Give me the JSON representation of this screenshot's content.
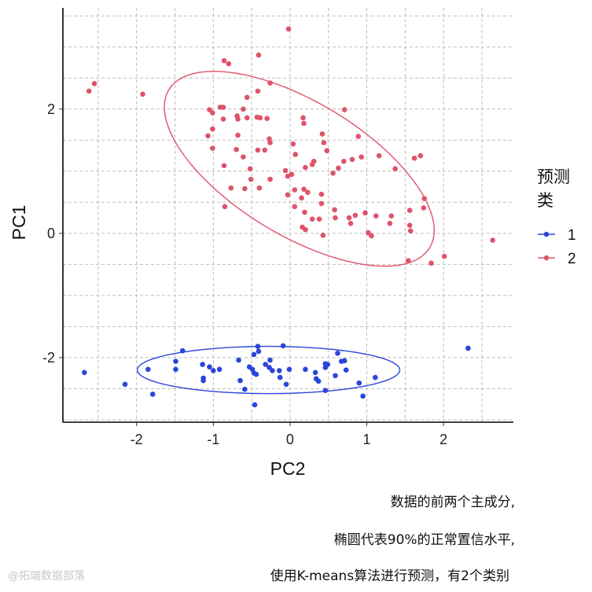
{
  "chart_data": {
    "type": "scatter",
    "xlabel": "PC2",
    "ylabel": "PC1",
    "xlim": [
      -2.96,
      2.91
    ],
    "ylim": [
      -3.04,
      3.63
    ],
    "xticks": [
      -2,
      -1,
      0,
      1,
      2
    ],
    "yticks": [
      -2,
      0,
      2
    ],
    "grid": true,
    "grid_style": "dashed",
    "legend": {
      "title": "预测\n类",
      "title_lines": [
        "预测",
        "类"
      ],
      "placement": "right",
      "entries": [
        "1",
        "2"
      ]
    },
    "colors": {
      "1": "#2a45d8",
      "2": "#df536b"
    },
    "series": [
      {
        "name": "1",
        "points": [
          [
            -2.68,
            -2.24
          ],
          [
            -2.15,
            -2.43
          ],
          [
            -1.79,
            -2.59
          ],
          [
            -1.85,
            -2.19
          ],
          [
            -1.4,
            -1.89
          ],
          [
            -1.49,
            -2.06
          ],
          [
            -1.49,
            -2.19
          ],
          [
            -1.14,
            -2.11
          ],
          [
            -1.13,
            -2.33
          ],
          [
            -1.13,
            -2.37
          ],
          [
            -1.05,
            -2.15
          ],
          [
            -1.0,
            -2.21
          ],
          [
            -0.92,
            -2.19
          ],
          [
            -0.67,
            -2.04
          ],
          [
            -0.65,
            -2.37
          ],
          [
            -0.59,
            -2.51
          ],
          [
            -0.53,
            -2.15
          ],
          [
            -0.49,
            -2.19
          ],
          [
            -0.47,
            -2.25
          ],
          [
            -0.44,
            -2.27
          ],
          [
            -0.47,
            -1.95
          ],
          [
            -0.42,
            -1.82
          ],
          [
            -0.41,
            -1.9
          ],
          [
            -0.46,
            -2.76
          ],
          [
            -0.32,
            -2.11
          ],
          [
            -0.26,
            -2.04
          ],
          [
            -0.27,
            -2.16
          ],
          [
            -0.23,
            -2.21
          ],
          [
            -0.14,
            -2.21
          ],
          [
            -0.13,
            -2.32
          ],
          [
            -0.09,
            -1.81
          ],
          [
            -0.05,
            -2.43
          ],
          [
            -0.01,
            -2.19
          ],
          [
            0.2,
            -2.19
          ],
          [
            0.33,
            -2.24
          ],
          [
            0.34,
            -2.34
          ],
          [
            0.37,
            -2.38
          ],
          [
            0.46,
            -2.1
          ],
          [
            0.46,
            -2.16
          ],
          [
            0.49,
            -2.11
          ],
          [
            0.46,
            -2.53
          ],
          [
            0.59,
            -2.29
          ],
          [
            0.62,
            -1.93
          ],
          [
            0.67,
            -2.06
          ],
          [
            0.71,
            -2.05
          ],
          [
            0.73,
            -2.2
          ],
          [
            0.9,
            -2.41
          ],
          [
            0.95,
            -2.62
          ],
          [
            1.11,
            -2.32
          ],
          [
            2.32,
            -1.85
          ]
        ],
        "ellipse": {
          "center": [
            -0.28,
            -2.2
          ],
          "axis_a": [
            1.71,
            0.0
          ],
          "axis_b": [
            0.0,
            0.38
          ],
          "level": 0.9
        }
      },
      {
        "name": "2",
        "points": [
          [
            -0.02,
            3.29
          ],
          [
            -0.86,
            2.78
          ],
          [
            -0.8,
            2.73
          ],
          [
            -0.41,
            2.87
          ],
          [
            -2.55,
            2.41
          ],
          [
            -2.62,
            2.29
          ],
          [
            -1.92,
            2.24
          ],
          [
            -0.26,
            2.42
          ],
          [
            -0.42,
            2.29
          ],
          [
            -0.56,
            2.19
          ],
          [
            -1.05,
            1.99
          ],
          [
            -1.01,
            1.94
          ],
          [
            -0.91,
            2.03
          ],
          [
            -0.87,
            2.03
          ],
          [
            -0.61,
            2.0
          ],
          [
            -0.87,
            1.84
          ],
          [
            -0.69,
            1.89
          ],
          [
            -0.68,
            1.84
          ],
          [
            -0.56,
            1.86
          ],
          [
            -0.43,
            1.87
          ],
          [
            -0.39,
            1.86
          ],
          [
            -0.3,
            1.85
          ],
          [
            -1.01,
            1.68
          ],
          [
            -1.07,
            1.57
          ],
          [
            -0.68,
            1.58
          ],
          [
            -1.01,
            1.37
          ],
          [
            -0.7,
            1.35
          ],
          [
            -0.27,
            1.52
          ],
          [
            -0.26,
            1.46
          ],
          [
            -0.42,
            1.34
          ],
          [
            -0.33,
            1.34
          ],
          [
            -0.61,
            1.23
          ],
          [
            0.04,
            1.44
          ],
          [
            0.07,
            1.27
          ],
          [
            -0.86,
            1.09
          ],
          [
            -0.52,
            1.04
          ],
          [
            -0.51,
            0.87
          ],
          [
            -0.26,
            0.87
          ],
          [
            -0.77,
            0.73
          ],
          [
            -0.59,
            0.72
          ],
          [
            -0.4,
            0.73
          ],
          [
            -0.85,
            0.43
          ],
          [
            -0.06,
            1.01
          ],
          [
            -0.03,
            0.92
          ],
          [
            0.02,
            0.95
          ],
          [
            0.06,
            0.7
          ],
          [
            -0.03,
            0.62
          ],
          [
            0.06,
            0.43
          ],
          [
            0.71,
            1.99
          ],
          [
            0.17,
            1.86
          ],
          [
            0.18,
            1.77
          ],
          [
            0.42,
            1.6
          ],
          [
            0.44,
            1.46
          ],
          [
            0.48,
            1.33
          ],
          [
            0.89,
            1.56
          ],
          [
            1.16,
            1.25
          ],
          [
            0.93,
            1.23
          ],
          [
            0.81,
            1.19
          ],
          [
            0.7,
            1.16
          ],
          [
            0.63,
            1.05
          ],
          [
            0.56,
            0.97
          ],
          [
            1.62,
            1.21
          ],
          [
            1.7,
            1.25
          ],
          [
            1.37,
            1.04
          ],
          [
            0.2,
            1.06
          ],
          [
            0.29,
            1.11
          ],
          [
            0.31,
            1.16
          ],
          [
            0.18,
            0.71
          ],
          [
            0.23,
            0.66
          ],
          [
            0.15,
            0.57
          ],
          [
            0.41,
            0.63
          ],
          [
            0.41,
            0.48
          ],
          [
            0.19,
            0.34
          ],
          [
            0.29,
            0.23
          ],
          [
            0.38,
            0.23
          ],
          [
            0.16,
            0.1
          ],
          [
            0.2,
            0.06
          ],
          [
            0.43,
            -0.03
          ],
          [
            0.58,
            0.38
          ],
          [
            0.59,
            0.25
          ],
          [
            0.77,
            0.25
          ],
          [
            0.79,
            0.16
          ],
          [
            0.85,
            0.29
          ],
          [
            0.98,
            0.33
          ],
          [
            1.12,
            0.28
          ],
          [
            1.32,
            0.28
          ],
          [
            1.3,
            0.16
          ],
          [
            1.02,
            0.01
          ],
          [
            1.06,
            -0.04
          ],
          [
            1.56,
            0.37
          ],
          [
            1.56,
            0.13
          ],
          [
            1.57,
            0.04
          ],
          [
            1.75,
            0.56
          ],
          [
            1.74,
            0.41
          ],
          [
            1.54,
            -0.44
          ],
          [
            1.84,
            -0.48
          ],
          [
            2.01,
            -0.37
          ],
          [
            2.64,
            -0.11
          ]
        ],
        "ellipse": {
          "center": [
            0.12,
            1.04
          ],
          "axis_a": [
            1.7,
            -1.27
          ],
          "axis_b": [
            -0.45,
            -0.92
          ],
          "level": 0.9
        }
      }
    ]
  },
  "caption": {
    "line1": "数据的前两个主成分,",
    "line2": "椭圆代表90%的正常置信水平,",
    "line3": "使用K-means算法进行预测，有2个类别"
  },
  "watermark": "@拓端数据部落"
}
